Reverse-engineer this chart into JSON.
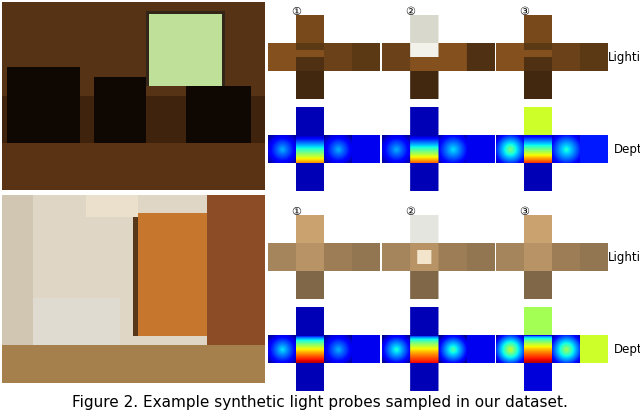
{
  "title": "Figure 2. Example synthetic light probes sampled in our dataset.",
  "title_fontsize": 11,
  "title_color": "#000000",
  "background_color": "#ffffff",
  "figure_width": 6.4,
  "figure_height": 4.17,
  "dpi": 100,
  "labels": {
    "lighting": "Lighting",
    "depth": "Depth",
    "nums": [
      "①",
      "②",
      "③"
    ]
  }
}
